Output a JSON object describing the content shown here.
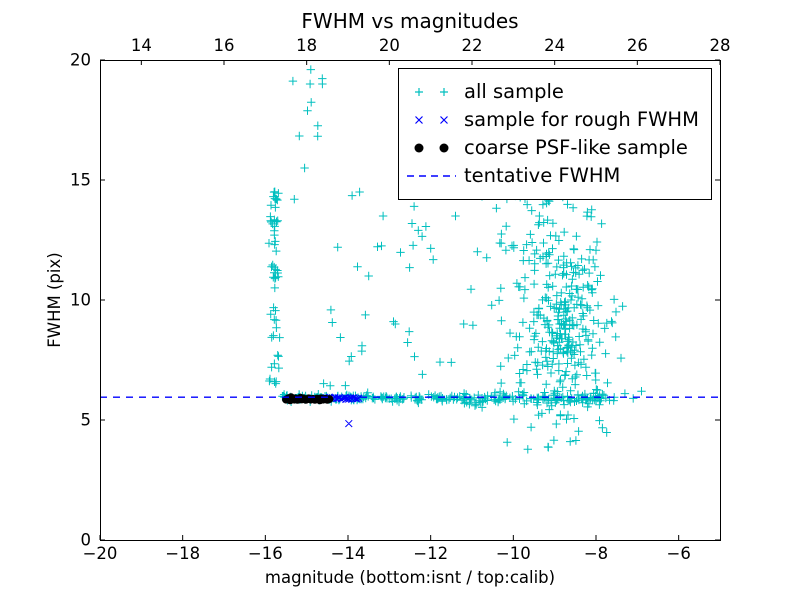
{
  "chart_data": {
    "type": "scatter",
    "title": "FWHM vs magnitudes",
    "xlabel": "magnitude (bottom:isnt / top:calib)",
    "ylabel": "FWHM (pix)",
    "grid": false,
    "x_axis": {
      "lim": [
        -20,
        -5
      ],
      "tick_values": [
        -20,
        -18,
        -16,
        -14,
        -12,
        -10,
        -8,
        -6
      ],
      "tick_labels": [
        "−20",
        "−18",
        "−16",
        "−14",
        "−12",
        "−10",
        "−8",
        "−6"
      ]
    },
    "top_axis": {
      "lim": [
        13,
        28
      ],
      "tick_values": [
        14,
        16,
        18,
        20,
        22,
        24,
        26,
        28
      ],
      "tick_labels": [
        "14",
        "16",
        "18",
        "20",
        "22",
        "24",
        "26",
        "28"
      ]
    },
    "y_axis": {
      "lim": [
        0,
        20
      ],
      "tick_values": [
        0,
        5,
        10,
        15,
        20
      ],
      "tick_labels": [
        "0",
        "5",
        "10",
        "15",
        "20"
      ]
    },
    "tentative_fwhm": 5.95,
    "legend": {
      "position": "upper right",
      "items": [
        {
          "label": "all sample",
          "marker": "plus",
          "color": "#00bfbf"
        },
        {
          "label": "sample for rough FWHM",
          "marker": "x",
          "color": "#0000ff"
        },
        {
          "label": "coarse PSF-like sample",
          "marker": "circle",
          "color": "#000000"
        },
        {
          "label": "tentative FWHM",
          "marker": "dashed-line",
          "color": "#0000ff"
        }
      ]
    },
    "series": [
      {
        "name": "all sample",
        "marker": "plus",
        "color": "#00bfbf",
        "clusters": [
          {
            "seed": 11,
            "n": 150,
            "x": {
              "dist": "uniform",
              "min": -15.6,
              "max": -11.2
            },
            "y": {
              "dist": "normal",
              "mean": 5.92,
              "sd": 0.07,
              "min": 5.7,
              "max": 6.2
            }
          },
          {
            "seed": 22,
            "n": 110,
            "x": {
              "dist": "uniform",
              "min": -11.2,
              "max": -7.55
            },
            "y": {
              "dist": "normal",
              "mean": 5.9,
              "sd": 0.12,
              "min": 5.5,
              "max": 6.4
            }
          },
          {
            "seed": 33,
            "n": 55,
            "x": {
              "dist": "normal",
              "mean": -15.78,
              "sd": 0.07,
              "min": -15.95,
              "max": -15.6
            },
            "y": {
              "dist": "uniform",
              "min": 6.1,
              "max": 14.6
            }
          },
          {
            "seed": 44,
            "n": 8,
            "x": {
              "dist": "uniform",
              "min": -15.4,
              "max": -14.6
            },
            "y": {
              "dist": "uniform",
              "min": 16.8,
              "max": 19.7
            }
          },
          {
            "seed": 55,
            "n": 320,
            "x": {
              "dist": "normal",
              "mean": -8.85,
              "sd": 0.6,
              "min": -10.7,
              "max": -7.1
            },
            "y": {
              "dist": "normal",
              "mean": 8.8,
              "sd": 2.1,
              "min": 3.6,
              "max": 14.8
            }
          },
          {
            "seed": 66,
            "n": 28,
            "x": {
              "dist": "uniform",
              "min": -14.6,
              "max": -10.9
            },
            "y": {
              "dist": "uniform",
              "min": 6.4,
              "max": 13.2
            }
          },
          {
            "seed": 77,
            "n": 8,
            "x": {
              "dist": "uniform",
              "min": -10.3,
              "max": -7.6
            },
            "y": {
              "dist": "uniform",
              "min": 3.8,
              "max": 5.3
            }
          },
          {
            "seed": 88,
            "n": 40,
            "x": {
              "dist": "normal",
              "mean": -9.4,
              "sd": 0.8,
              "min": -10.9,
              "max": -7.4
            },
            "y": {
              "dist": "uniform",
              "min": 11.5,
              "max": 14.6
            }
          }
        ],
        "points": [
          [
            -14.9,
            19.6
          ],
          [
            -14.62,
            19.0
          ],
          [
            -15.05,
            15.5
          ],
          [
            -15.3,
            14.2
          ],
          [
            -13.9,
            14.35
          ],
          [
            -13.72,
            14.5
          ],
          [
            -12.4,
            13.9
          ],
          [
            -13.15,
            13.5
          ],
          [
            -11.4,
            13.5
          ],
          [
            -14.25,
            12.2
          ],
          [
            -12.0,
            12.15
          ],
          [
            -12.3,
            12.9
          ],
          [
            -13.5,
            11.0
          ],
          [
            -12.9,
            9.1
          ],
          [
            -11.2,
            9.0
          ],
          [
            -12.2,
            6.9
          ],
          [
            -11.5,
            7.4
          ],
          [
            -7.3,
            6.1
          ],
          [
            -7.1,
            5.9
          ],
          [
            -6.9,
            6.2
          ],
          [
            -10.2,
            14.9
          ],
          [
            -9.6,
            15.6
          ],
          [
            -9.1,
            16.2
          ],
          [
            -8.8,
            15.1
          ],
          [
            -9.9,
            16.8
          ],
          [
            -8.5,
            14.9
          ]
        ]
      },
      {
        "name": "sample for rough FWHM",
        "marker": "x",
        "color": "#0000ff",
        "points": [
          [
            -14.58,
            5.9
          ],
          [
            -14.52,
            5.93
          ],
          [
            -14.47,
            5.88
          ],
          [
            -14.42,
            5.92
          ],
          [
            -14.37,
            5.9
          ],
          [
            -14.32,
            5.94
          ],
          [
            -14.27,
            5.89
          ],
          [
            -14.22,
            5.92
          ],
          [
            -14.17,
            5.88
          ],
          [
            -14.12,
            5.91
          ],
          [
            -14.07,
            5.94
          ],
          [
            -14.02,
            5.9
          ],
          [
            -13.98,
            5.87
          ],
          [
            -13.94,
            5.92
          ],
          [
            -13.9,
            5.89
          ],
          [
            -13.86,
            5.93
          ],
          [
            -13.82,
            5.9
          ],
          [
            -13.78,
            5.88
          ],
          [
            -13.74,
            5.91
          ],
          [
            -14.45,
            5.95
          ],
          [
            -14.05,
            5.86
          ],
          [
            -13.98,
            4.85
          ]
        ]
      },
      {
        "name": "coarse PSF-like sample",
        "marker": "circle",
        "color": "#000000",
        "points": [
          [
            -15.5,
            5.85
          ],
          [
            -15.45,
            5.9
          ],
          [
            -15.4,
            5.82
          ],
          [
            -15.35,
            5.88
          ],
          [
            -15.3,
            5.85
          ],
          [
            -15.28,
            5.9
          ],
          [
            -15.22,
            5.84
          ],
          [
            -15.18,
            5.88
          ],
          [
            -15.12,
            5.86
          ],
          [
            -15.08,
            5.9
          ],
          [
            -15.02,
            5.84
          ],
          [
            -14.98,
            5.87
          ],
          [
            -14.95,
            5.9
          ],
          [
            -14.9,
            5.85
          ],
          [
            -14.85,
            5.88
          ],
          [
            -14.8,
            5.84
          ],
          [
            -14.75,
            5.89
          ],
          [
            -14.7,
            5.86
          ],
          [
            -14.65,
            5.9
          ],
          [
            -14.6,
            5.85
          ],
          [
            -14.55,
            5.88
          ],
          [
            -14.5,
            5.84
          ],
          [
            -14.45,
            5.87
          ],
          [
            -15.38,
            5.95
          ],
          [
            -15.15,
            5.93
          ],
          [
            -14.68,
            5.82
          ]
        ]
      },
      {
        "name": "tentative FWHM",
        "type": "hline",
        "linestyle": "dashed",
        "color": "#0000ff",
        "y": 5.95
      }
    ]
  },
  "colors": {
    "background": "#ffffff",
    "axes": "#000000",
    "all_sample": "#00bfbf",
    "rough_fwhm": "#0000ff",
    "psf_like": "#000000",
    "tentative_line": "#0000ff"
  }
}
